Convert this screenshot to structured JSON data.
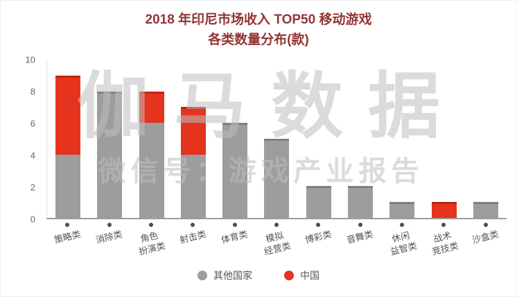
{
  "title": {
    "line1": "2018 年印尼市场收入 TOP50 移动游戏",
    "line2": "各类数量分布(款)"
  },
  "watermark": {
    "line1": "伽马数据",
    "line2": "微信号：游戏产业报告"
  },
  "colors": {
    "title": "#943434",
    "watermark": "rgba(190,190,190,0.55)",
    "axis_line": "#9c9c9c",
    "other_country": "#9d9d9d",
    "china": "#e6331e"
  },
  "chart_data": {
    "type": "bar",
    "stacked": true,
    "title": "2018 年印尼市场收入 TOP50 移动游戏 各类数量分布(款)",
    "xlabel": "",
    "ylabel": "",
    "ylim": [
      0,
      10
    ],
    "yticks": [
      0,
      2,
      4,
      6,
      8,
      10
    ],
    "grid": false,
    "legend_position": "bottom",
    "categories": [
      "策略类",
      "消除类",
      "角色\n扮演类",
      "射击类",
      "体育类",
      "模拟\n经营类",
      "博彩类",
      "音舞类",
      "休闲\n益智类",
      "战术\n竞技类",
      "沙盒类"
    ],
    "series": [
      {
        "name": "其他国家",
        "color": "#9d9d9d",
        "cap_color": "#7f7f7f",
        "values": [
          4,
          8,
          6,
          4,
          6,
          5,
          2,
          2,
          1,
          0,
          1
        ]
      },
      {
        "name": "中国",
        "color": "#e6331e",
        "cap_color": "#bd2410",
        "values": [
          5,
          0,
          2,
          3,
          0,
          0,
          0,
          0,
          0,
          1,
          0
        ]
      }
    ],
    "totals": [
      9,
      8,
      8,
      7,
      6,
      5,
      2,
      2,
      1,
      1,
      1
    ]
  }
}
